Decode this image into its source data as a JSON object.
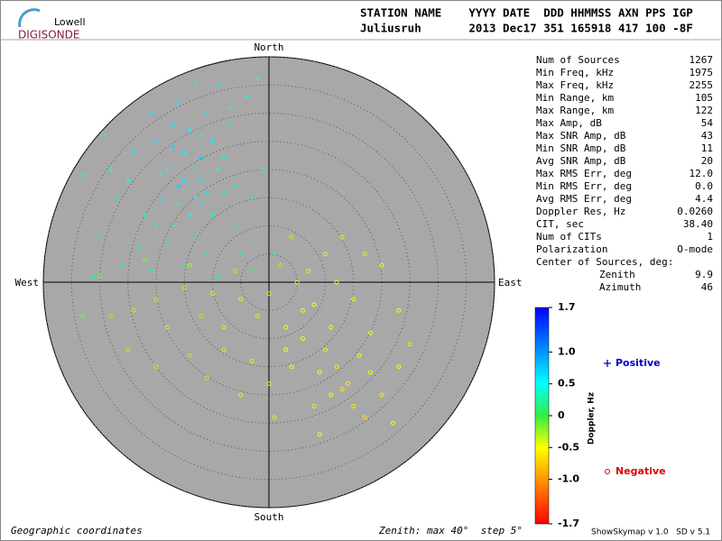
{
  "chart_data": {
    "type": "skymap",
    "logo": {
      "brand": "Lowell",
      "product": "DIGISONDE"
    },
    "header": {
      "columns": "STATION NAME    YYYY DATE  DDD HHMMSS AXN PPS IGP",
      "values": "Juliusruh       2013 Dec17 351 165918 417 100 -8F"
    },
    "directions": {
      "north": "North",
      "south": "South",
      "east": "East",
      "west": "West"
    },
    "rlim": [
      0,
      40
    ],
    "rticks": [
      5,
      10,
      15,
      20,
      25,
      30,
      35,
      40
    ],
    "stats": [
      [
        "Num of Sources",
        "1267"
      ],
      [
        "Min Freq, kHz",
        "1975"
      ],
      [
        "Max Freq, kHz",
        "2255"
      ],
      [
        "Min Range, km",
        "105"
      ],
      [
        "Max Range, km",
        "122"
      ],
      [
        "Max Amp, dB",
        "54"
      ],
      [
        "Max SNR Amp, dB",
        "43"
      ],
      [
        "Min SNR Amp, dB",
        "11"
      ],
      [
        "Avg SNR Amp, dB",
        "20"
      ],
      [
        "Max RMS Err, deg",
        "12.0"
      ],
      [
        "Min RMS Err, deg",
        "0.0"
      ],
      [
        "Avg RMS Err, deg",
        "4.4"
      ],
      [
        "Doppler Res, Hz",
        "0.0260"
      ],
      [
        "CIT, sec",
        "38.40"
      ],
      [
        "Num of CITs",
        "1"
      ],
      [
        "Polarization",
        "O-mode"
      ]
    ],
    "center": {
      "title": "Center of Sources, deg:",
      "rows": [
        [
          "Zenith",
          "9.9"
        ],
        [
          "Azimuth",
          "46"
        ]
      ]
    },
    "colorbar": {
      "label": "Doppler, Hz",
      "clim": [
        -1.7,
        1.7
      ],
      "ticks": [
        1.7,
        {
          "value": 1.0,
          "label": "1.0"
        },
        0.5,
        0,
        -0.5,
        {
          "value": -1.0,
          "label": "-1.0"
        },
        -1.7
      ]
    },
    "footer": {
      "left": "Geographic coordinates",
      "center": "Zenith: max 40°  step 5°",
      "right": "ShowSkymap v 1.0   SD v 5.1"
    },
    "series": [
      {
        "name": "Positive",
        "color": "#0000cc",
        "marker": "plus",
        "x": [
          -13,
          -15,
          -10,
          -18,
          -12,
          -16,
          -8,
          -20,
          -14,
          -11,
          -22,
          -25,
          -9,
          -17,
          -13,
          -6,
          -19,
          -12,
          -15,
          -10,
          -7,
          -4,
          -2,
          -24,
          -27,
          -30,
          -28,
          -21,
          -16,
          -13,
          -9,
          -18,
          -11,
          -5,
          -3,
          -1,
          -14,
          -16,
          -11,
          -13,
          -19,
          -8,
          -6,
          -20,
          -23,
          -26,
          -31,
          -15,
          -9,
          -3,
          1,
          -12,
          -17,
          -7,
          -2,
          -33,
          -29,
          -21,
          -12,
          -17
        ],
        "y": [
          15,
          18,
          12,
          20,
          22,
          14,
          16,
          25,
          27,
          30,
          12,
          18,
          20,
          10,
          8,
          10,
          15,
          18,
          23,
          25,
          28,
          33,
          26,
          23,
          15,
          8,
          20,
          30,
          32,
          35,
          35,
          7,
          5,
          5,
          15,
          20,
          12,
          17,
          16,
          20,
          19,
          22,
          17,
          10,
          6,
          3,
          1,
          3,
          1,
          2,
          5,
          26,
          28,
          31,
          36,
          19,
          26,
          2,
          14,
          24
        ],
        "doppler": [
          0.5,
          0.6,
          0.4,
          0.5,
          0.7,
          0.5,
          0.4,
          0.6,
          0.5,
          0.6,
          0.4,
          0.5,
          0.5,
          0.3,
          0.3,
          0.3,
          0.6,
          0.6,
          0.5,
          0.5,
          0.4,
          0.5,
          0.4,
          0.6,
          0.4,
          0.3,
          0.5,
          0.6,
          0.6,
          0.5,
          0.6,
          0.3,
          0.2,
          0.2,
          0.3,
          0.4,
          0.5,
          0.7,
          0.6,
          0.6,
          0.5,
          0.5,
          0.4,
          0.4,
          0.3,
          0.3,
          0.2,
          0.2,
          0.2,
          0.1,
          0.2,
          0.5,
          0.6,
          0.5,
          0.5,
          0.5,
          0.5,
          0.2,
          0.6,
          0.7
        ]
      },
      {
        "name": "Negative",
        "color": "#dd0000",
        "marker": "circle",
        "x": [
          -20,
          -15,
          -10,
          -5,
          0,
          5,
          8,
          3,
          6,
          10,
          12,
          14,
          11,
          15,
          13,
          9,
          18,
          20,
          17,
          22,
          4,
          0,
          -3,
          -8,
          -12,
          -18,
          -24,
          -28,
          -33,
          -30,
          -22,
          -14,
          -6,
          2,
          7,
          12,
          15,
          10,
          4,
          13,
          17,
          20,
          23,
          18,
          6,
          -2,
          -8,
          -14,
          -20,
          -25,
          -11,
          1,
          9,
          23,
          25,
          8,
          16,
          -5,
          3,
          11
        ],
        "y": [
          -3,
          -1,
          -2,
          -3,
          -2,
          0,
          -4,
          -8,
          -10,
          -12,
          -15,
          -18,
          -20,
          -22,
          -19,
          -16,
          -16,
          -20,
          -24,
          -25,
          -15,
          -18,
          -14,
          -8,
          -6,
          -8,
          -5,
          -6,
          -6,
          1,
          4,
          3,
          2,
          3,
          2,
          0,
          -3,
          5,
          8,
          8,
          5,
          3,
          -5,
          -9,
          -5,
          -6,
          -12,
          -13,
          -15,
          -12,
          -17,
          -24,
          -27,
          -15,
          -11,
          -22,
          -13,
          -20,
          -12,
          -8
        ],
        "doppler": [
          -0.3,
          -0.3,
          -0.4,
          -0.4,
          -0.3,
          -0.4,
          -0.5,
          -0.5,
          -0.5,
          -0.6,
          -0.6,
          -0.6,
          -0.5,
          -0.6,
          -0.6,
          -0.5,
          -0.5,
          -0.6,
          -0.6,
          -0.5,
          -0.5,
          -0.4,
          -0.4,
          -0.4,
          -0.3,
          -0.3,
          -0.3,
          -0.2,
          -0.2,
          -0.2,
          -0.2,
          -0.3,
          -0.3,
          -0.3,
          -0.4,
          -0.5,
          -0.5,
          -0.4,
          -0.3,
          -0.4,
          -0.4,
          -0.5,
          -0.5,
          -0.5,
          -0.5,
          -0.4,
          -0.4,
          -0.3,
          -0.3,
          -0.3,
          -0.3,
          -0.4,
          -0.5,
          -0.5,
          -0.6,
          -0.6,
          -0.5,
          -0.4,
          -0.5,
          -0.5
        ]
      }
    ]
  }
}
